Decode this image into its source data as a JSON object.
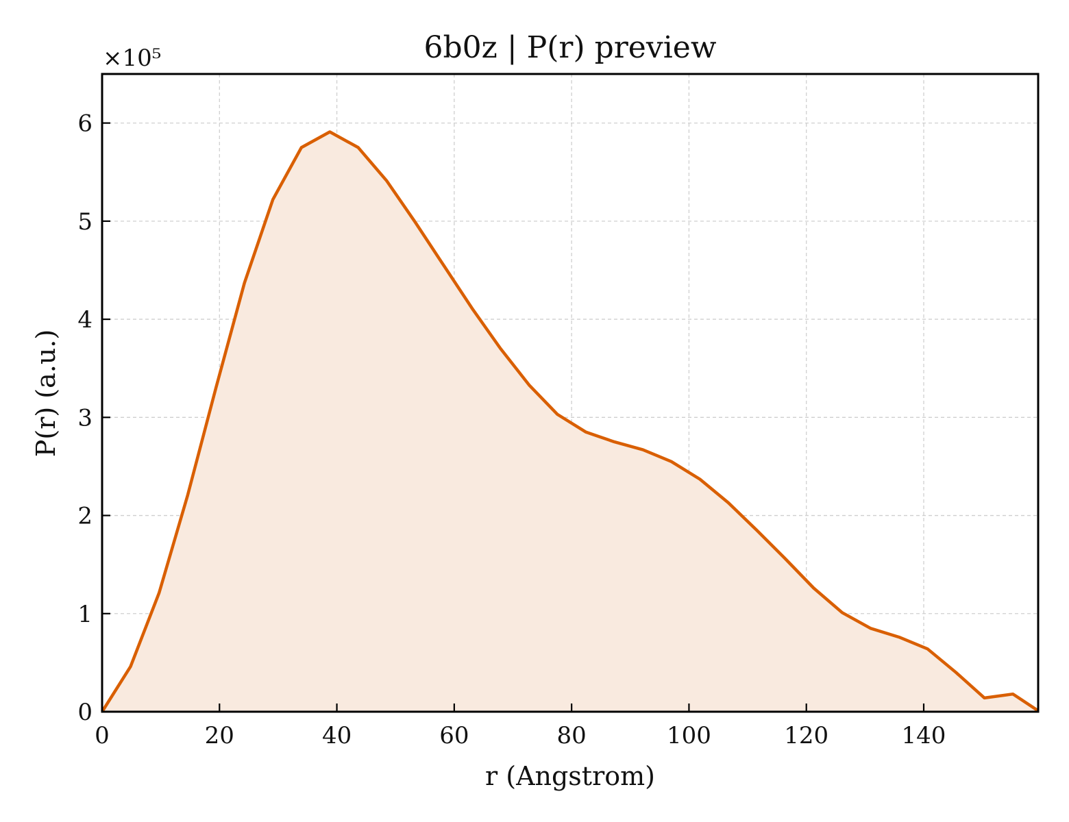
{
  "chart_data": {
    "type": "area",
    "title": "6b0z | P(r) preview",
    "xlabel": "r (Angstrom)",
    "ylabel": "P(r) (a.u.)",
    "y_scale_note": "×10⁵",
    "xlim": [
      0,
      159.5
    ],
    "ylim": [
      0,
      6.5
    ],
    "x_ticks": [
      0,
      20,
      40,
      60,
      80,
      100,
      120,
      140
    ],
    "y_ticks": [
      0,
      1,
      2,
      3,
      4,
      5,
      6
    ],
    "grid": true,
    "line_color": "#d95f02",
    "fill_color": "#f9eadf",
    "series": [
      {
        "x": [
          0,
          4.85,
          9.7,
          14.55,
          19.4,
          24.25,
          29.1,
          33.95,
          38.8,
          43.65,
          48.5,
          53.35,
          58.2,
          63.05,
          67.9,
          72.75,
          77.6,
          82.45,
          87.3,
          92.15,
          97.0,
          101.85,
          106.7,
          111.55,
          116.4,
          121.25,
          126.1,
          130.95,
          135.8,
          140.65,
          145.5,
          150.35,
          155.2,
          159.5
        ],
        "y": [
          0.0,
          0.46,
          1.21,
          2.2,
          3.3,
          4.37,
          5.22,
          5.75,
          5.91,
          5.75,
          5.41,
          4.99,
          4.55,
          4.11,
          3.7,
          3.33,
          3.03,
          2.85,
          2.75,
          2.67,
          2.55,
          2.37,
          2.13,
          1.85,
          1.56,
          1.26,
          1.01,
          0.85,
          0.76,
          0.64,
          0.4,
          0.14,
          0.18,
          0.01
        ]
      }
    ]
  }
}
